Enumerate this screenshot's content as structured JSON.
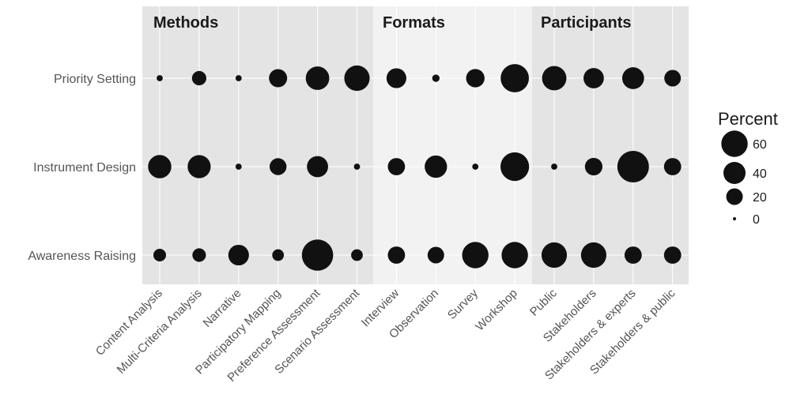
{
  "chart_data": {
    "type": "scatter",
    "groups": [
      {
        "name": "Methods",
        "color": "#e4e4e4"
      },
      {
        "name": "Formats",
        "color": "#f2f2f2"
      },
      {
        "name": "Participants",
        "color": "#e4e4e4"
      }
    ],
    "categories": [
      "Content Analysis",
      "Multi-Criteria Analysis",
      "Narrative",
      "Participatory Mapping",
      "Preference Assessment",
      "Scenario Assessment",
      "Interview",
      "Observation",
      "Survey",
      "Workshop",
      "Public",
      "Stakeholders",
      "Stakeholders & experts",
      "Stakeholders & public"
    ],
    "category_groups": [
      0,
      0,
      0,
      0,
      0,
      0,
      1,
      1,
      1,
      1,
      2,
      2,
      2,
      2
    ],
    "rows": [
      "Priority Setting",
      "Instrument Design",
      "Awareness Raising"
    ],
    "values": [
      [
        1,
        14,
        1,
        25,
        46,
        55,
        31,
        2,
        26,
        70,
        50,
        33,
        39,
        20
      ],
      [
        45,
        44,
        1,
        21,
        36,
        1,
        22,
        41,
        1,
        72,
        1,
        23,
        90,
        22
      ],
      [
        10,
        12,
        34,
        8,
        88,
        8,
        22,
        20,
        60,
        60,
        55,
        55,
        22,
        22
      ]
    ],
    "legend": {
      "title": "Percent",
      "entries": [
        60,
        40,
        20,
        0
      ],
      "placement": "right"
    },
    "point_color": "#111111"
  }
}
